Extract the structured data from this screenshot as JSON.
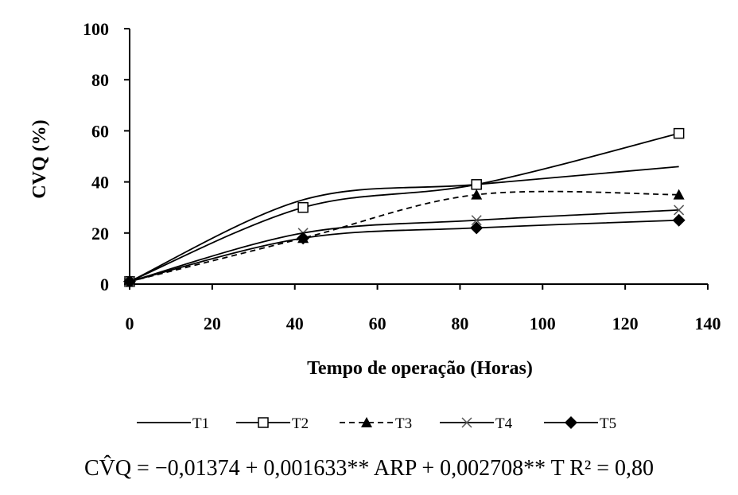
{
  "chart_data": {
    "type": "line",
    "title": "",
    "xlabel": "Tempo de operação (Horas)",
    "ylabel": "CVQ (%)",
    "xlim": [
      0,
      140
    ],
    "ylim": [
      0,
      100
    ],
    "xticks": [
      "0",
      "20",
      "40",
      "60",
      "80",
      "100",
      "120",
      "140"
    ],
    "yticks": [
      "0",
      "20",
      "40",
      "60",
      "80",
      "100"
    ],
    "grid": false,
    "legend_position": "bottom",
    "series": [
      {
        "name": "T1",
        "marker": "none",
        "line": "solid",
        "x": [
          0,
          42,
          84,
          133
        ],
        "y": [
          1,
          33,
          39,
          46
        ]
      },
      {
        "name": "T2",
        "marker": "open-square",
        "line": "solid",
        "x": [
          0,
          42,
          84,
          133
        ],
        "y": [
          1,
          30,
          39,
          59
        ]
      },
      {
        "name": "T3",
        "marker": "filled-triangle",
        "line": "dashed",
        "x": [
          0,
          42,
          84,
          133
        ],
        "y": [
          1,
          18,
          35,
          35
        ]
      },
      {
        "name": "T4",
        "marker": "cross",
        "line": "solid",
        "x": [
          0,
          42,
          84,
          133
        ],
        "y": [
          1,
          20,
          25,
          29
        ]
      },
      {
        "name": "T5",
        "marker": "filled-diamond",
        "line": "solid",
        "x": [
          0,
          42,
          84,
          133
        ],
        "y": [
          1,
          18,
          22,
          25
        ]
      }
    ]
  },
  "equation": "CV̂Q = −0,01374 + 0,001633** ARP + 0,002708** T   R² = 0,80"
}
